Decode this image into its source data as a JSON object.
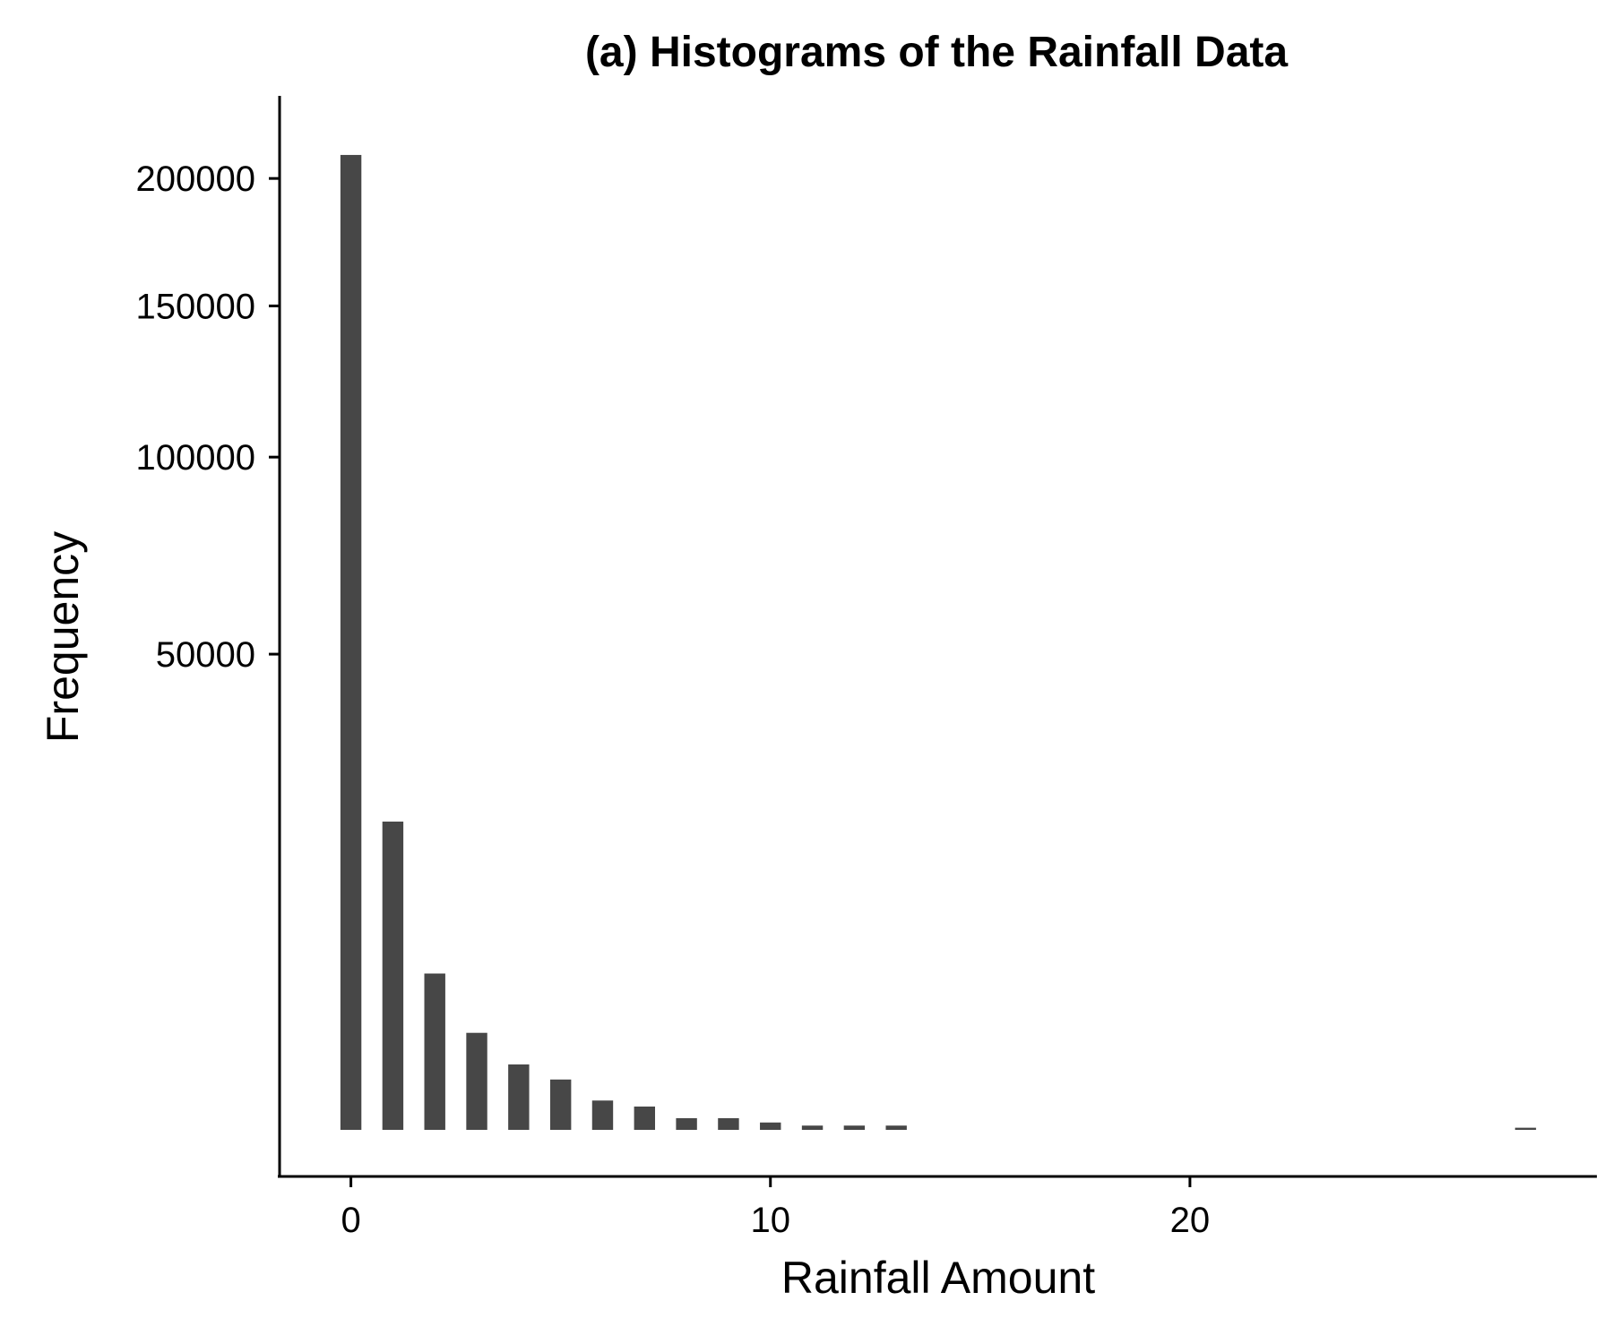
{
  "chart_data": {
    "type": "bar",
    "title": "(a) Histograms of the Rainfall Data",
    "xlabel": "Rainfall Amount",
    "ylabel": "Frequency",
    "y_scale": "sqrt",
    "xlim": [
      -1.7,
      29.7
    ],
    "ylim": [
      0,
      235000
    ],
    "x_ticks": [
      {
        "value": 0,
        "label": "0"
      },
      {
        "value": 10,
        "label": "10"
      },
      {
        "value": 20,
        "label": "20"
      }
    ],
    "y_ticks": [
      {
        "value": 50000,
        "label": "50000"
      },
      {
        "value": 100000,
        "label": "100000"
      },
      {
        "value": 150000,
        "label": "150000"
      },
      {
        "value": 200000,
        "label": "200000"
      }
    ],
    "bar_width": 0.5,
    "bar_color": "#474747",
    "grid": false,
    "legend": "none",
    "bins": [
      {
        "x": 0,
        "value": 210000
      },
      {
        "x": 1,
        "value": 21000
      },
      {
        "x": 2,
        "value": 5400
      },
      {
        "x": 3,
        "value": 2080
      },
      {
        "x": 4,
        "value": 945
      },
      {
        "x": 5,
        "value": 560
      },
      {
        "x": 6,
        "value": 190
      },
      {
        "x": 7,
        "value": 120
      },
      {
        "x": 8,
        "value": 30
      },
      {
        "x": 9,
        "value": 30
      },
      {
        "x": 10,
        "value": 12
      },
      {
        "x": 11,
        "value": 4
      },
      {
        "x": 12,
        "value": 4
      },
      {
        "x": 13,
        "value": 4
      },
      {
        "x": 28,
        "value": 1
      }
    ]
  }
}
